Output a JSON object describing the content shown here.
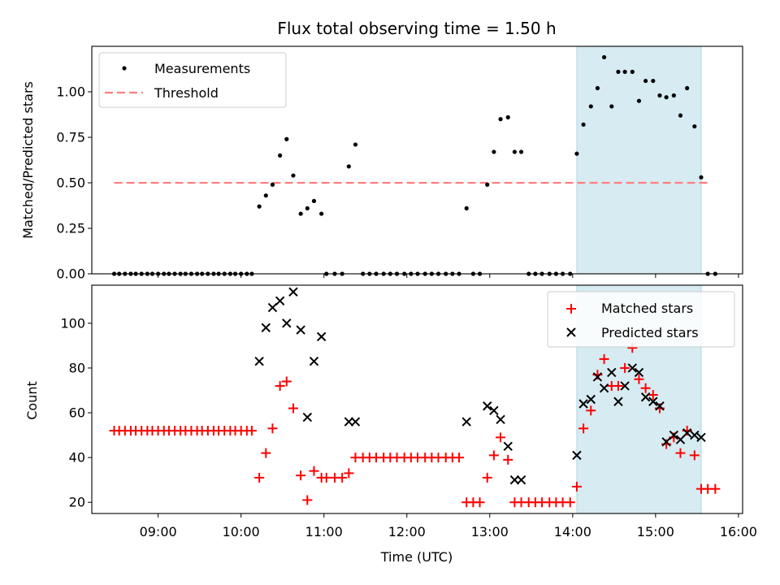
{
  "chart_data": [
    {
      "type": "scatter",
      "title": "Flux total observing time = 1.50 h",
      "xlabel": "",
      "ylabel": "Matched/Predicted stars",
      "xlim": [
        8.2,
        16.05
      ],
      "ylim": [
        0,
        1.25
      ],
      "yticks": [
        0.0,
        0.25,
        0.5,
        0.75,
        1.0
      ],
      "ytick_labels": [
        "0.00",
        "0.25",
        "0.50",
        "0.75",
        "1.00"
      ],
      "highlight_span": [
        14.05,
        15.55
      ],
      "legend": {
        "position": "top-left",
        "entries": [
          "Measurements",
          "Threshold"
        ]
      },
      "threshold": {
        "name": "Threshold",
        "value": 0.5,
        "x_range": [
          8.47,
          15.67
        ]
      },
      "series": [
        {
          "name": "Measurements",
          "x": [
            8.47,
            8.53,
            8.6,
            8.67,
            8.73,
            8.8,
            8.87,
            8.93,
            9.0,
            9.07,
            9.13,
            9.2,
            9.27,
            9.33,
            9.4,
            9.47,
            9.53,
            9.6,
            9.67,
            9.73,
            9.8,
            9.87,
            9.93,
            10.0,
            10.07,
            10.13,
            10.22,
            10.3,
            10.38,
            10.47,
            10.55,
            10.63,
            10.72,
            10.8,
            10.88,
            10.97,
            11.03,
            11.13,
            11.22,
            11.3,
            11.38,
            11.47,
            11.55,
            11.63,
            11.72,
            11.8,
            11.88,
            11.97,
            12.05,
            12.13,
            12.22,
            12.3,
            12.38,
            12.47,
            12.55,
            12.63,
            12.72,
            12.8,
            12.88,
            12.97,
            13.05,
            13.13,
            13.22,
            13.3,
            13.38,
            13.47,
            13.55,
            13.63,
            13.72,
            13.8,
            13.88,
            13.97,
            14.05,
            14.13,
            14.22,
            14.3,
            14.38,
            14.47,
            14.55,
            14.63,
            14.72,
            14.8,
            14.88,
            14.97,
            15.05,
            15.13,
            15.22,
            15.3,
            15.38,
            15.47,
            15.55,
            15.63,
            15.72
          ],
          "y": [
            0,
            0,
            0,
            0,
            0,
            0,
            0,
            0,
            0,
            0,
            0,
            0,
            0,
            0,
            0,
            0,
            0,
            0,
            0,
            0,
            0,
            0,
            0,
            0,
            0,
            0,
            0.37,
            0.43,
            0.49,
            0.65,
            0.74,
            0.54,
            0.33,
            0.36,
            0.4,
            0.33,
            0,
            0,
            0,
            0.59,
            0.71,
            0,
            0,
            0,
            0,
            0,
            0,
            0,
            0,
            0,
            0,
            0,
            0,
            0,
            0,
            0,
            0.36,
            0,
            0,
            0.49,
            0.67,
            0.85,
            0.86,
            0.67,
            0.67,
            0,
            0,
            0,
            0,
            0,
            0,
            0,
            0.66,
            0.82,
            0.92,
            1.02,
            1.19,
            0.92,
            1.11,
            1.11,
            1.11,
            0.95,
            1.06,
            1.06,
            0.98,
            0.97,
            0.98,
            0.87,
            1.02,
            0.81,
            0.53,
            0,
            0
          ]
        }
      ]
    },
    {
      "type": "scatter",
      "title": "",
      "xlabel": "Time (UTC)",
      "ylabel": "Count",
      "xlim": [
        8.2,
        16.05
      ],
      "ylim": [
        15,
        117
      ],
      "yticks": [
        20,
        40,
        60,
        80,
        100
      ],
      "ytick_labels": [
        "20",
        "40",
        "60",
        "80",
        "100"
      ],
      "xticks": [
        9,
        10,
        11,
        12,
        13,
        14,
        15,
        16
      ],
      "xtick_labels": [
        "09:00",
        "10:00",
        "11:00",
        "12:00",
        "13:00",
        "14:00",
        "15:00",
        "16:00"
      ],
      "highlight_span": [
        14.05,
        15.55
      ],
      "legend": {
        "position": "top-right",
        "entries": [
          "Matched stars",
          "Predicted stars"
        ]
      },
      "series": [
        {
          "name": "Matched stars",
          "color": "#ff0000",
          "x": [
            8.47,
            8.53,
            8.6,
            8.67,
            8.73,
            8.8,
            8.87,
            8.93,
            9.0,
            9.07,
            9.13,
            9.2,
            9.27,
            9.33,
            9.4,
            9.47,
            9.53,
            9.6,
            9.67,
            9.73,
            9.8,
            9.87,
            9.93,
            10.0,
            10.07,
            10.13,
            10.22,
            10.3,
            10.38,
            10.47,
            10.55,
            10.63,
            10.72,
            10.8,
            10.88,
            10.97,
            11.03,
            11.13,
            11.22,
            11.3,
            11.38,
            11.47,
            11.55,
            11.63,
            11.72,
            11.8,
            11.88,
            11.97,
            12.05,
            12.13,
            12.22,
            12.3,
            12.38,
            12.47,
            12.55,
            12.63,
            12.72,
            12.8,
            12.88,
            12.97,
            13.05,
            13.13,
            13.22,
            13.3,
            13.38,
            13.47,
            13.55,
            13.63,
            13.72,
            13.8,
            13.88,
            13.97,
            14.05,
            14.13,
            14.22,
            14.3,
            14.38,
            14.47,
            14.55,
            14.63,
            14.72,
            14.8,
            14.88,
            14.97,
            15.05,
            15.13,
            15.22,
            15.3,
            15.38,
            15.47,
            15.55,
            15.63,
            15.72
          ],
          "y": [
            52,
            52,
            52,
            52,
            52,
            52,
            52,
            52,
            52,
            52,
            52,
            52,
            52,
            52,
            52,
            52,
            52,
            52,
            52,
            52,
            52,
            52,
            52,
            52,
            52,
            52,
            31,
            42,
            53,
            72,
            74,
            62,
            32,
            21,
            34,
            31,
            31,
            31,
            31,
            33,
            40,
            40,
            40,
            40,
            40,
            40,
            40,
            40,
            40,
            40,
            40,
            40,
            40,
            40,
            40,
            40,
            20,
            20,
            20,
            31,
            41,
            49,
            39,
            20,
            20,
            20,
            20,
            20,
            20,
            20,
            20,
            20,
            27,
            53,
            61,
            77,
            84,
            72,
            72,
            80,
            89,
            75,
            71,
            68,
            62,
            46,
            49,
            42,
            52,
            41,
            26,
            26,
            26
          ]
        },
        {
          "name": "Predicted stars",
          "color": "#000000",
          "x": [
            10.22,
            10.3,
            10.38,
            10.47,
            10.55,
            10.63,
            10.72,
            10.8,
            10.88,
            10.97,
            11.3,
            11.38,
            12.72,
            12.97,
            13.05,
            13.13,
            13.22,
            13.3,
            13.38,
            14.05,
            14.13,
            14.22,
            14.3,
            14.38,
            14.47,
            14.55,
            14.63,
            14.72,
            14.8,
            14.88,
            14.97,
            15.05,
            15.13,
            15.22,
            15.3,
            15.38,
            15.47,
            15.55
          ],
          "y": [
            83,
            98,
            107,
            110,
            100,
            114,
            97,
            58,
            83,
            94,
            56,
            56,
            56,
            63,
            61,
            57,
            45,
            30,
            30,
            41,
            64,
            66,
            76,
            71,
            78,
            65,
            72,
            80,
            78,
            67,
            65,
            63,
            47,
            50,
            48,
            51,
            50,
            49
          ]
        }
      ]
    }
  ]
}
